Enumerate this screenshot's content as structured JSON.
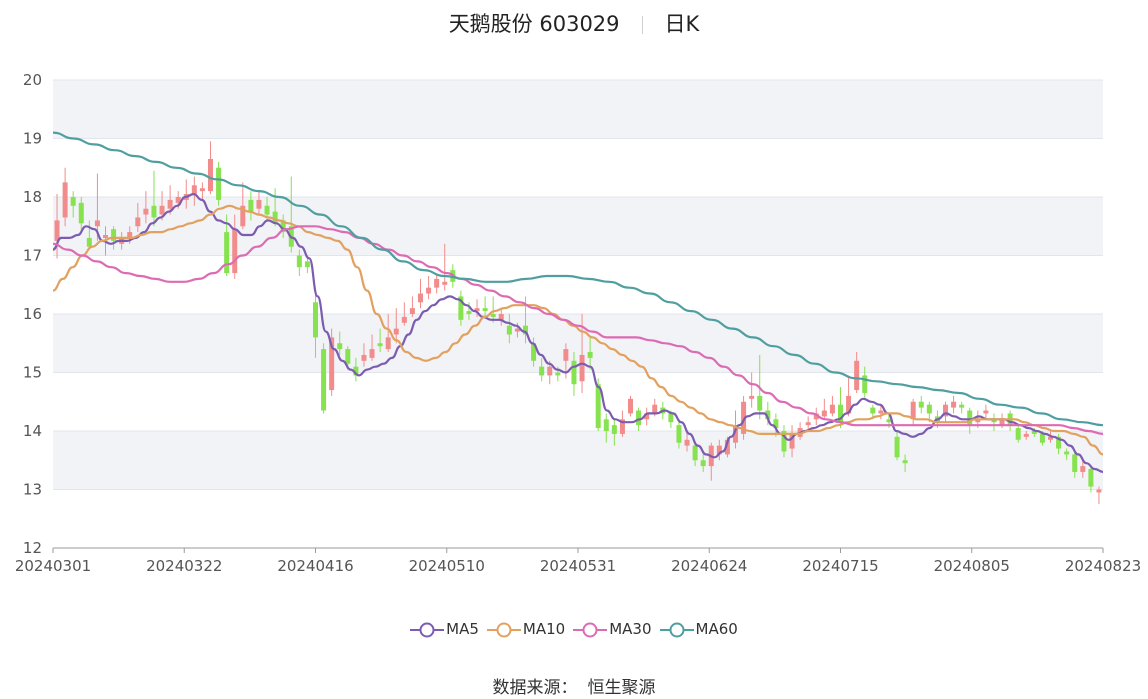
{
  "title": {
    "name": "天鹅股份 603029",
    "period": "日K"
  },
  "source": {
    "label": "数据来源：",
    "value": "恒生聚源"
  },
  "colors": {
    "up": "#f28c8c",
    "down": "#86e24f",
    "ma5": "#7b5cb0",
    "ma10": "#e2a15f",
    "ma30": "#dc6bb4",
    "ma60": "#4f9ea0",
    "band": "#f2f3f7",
    "grid": "#e3e5ec",
    "axis": "#9a9a9a"
  },
  "chart_data": {
    "type": "candlestick",
    "y_axis": {
      "min": 12,
      "max": 20,
      "ticks": [
        "12",
        "13",
        "14",
        "15",
        "16",
        "17",
        "18",
        "19",
        "20"
      ]
    },
    "x_labels": [
      "20240301",
      "20240322",
      "20240416",
      "20240510",
      "20240531",
      "20240624",
      "20240715",
      "20240805",
      "20240823"
    ],
    "legend": [
      {
        "key": "ma5",
        "label": "MA5"
      },
      {
        "key": "ma10",
        "label": "MA10"
      },
      {
        "key": "ma30",
        "label": "MA30"
      },
      {
        "key": "ma60",
        "label": "MA60"
      }
    ],
    "ohlc": [
      [
        17.25,
        17.6,
        18.05,
        16.95
      ],
      [
        17.65,
        18.25,
        18.5,
        17.5
      ],
      [
        18.0,
        17.85,
        18.1,
        17.65
      ],
      [
        17.9,
        17.55,
        18.0,
        17.4
      ],
      [
        17.3,
        17.15,
        17.6,
        17.1
      ],
      [
        17.5,
        17.6,
        18.4,
        17.25
      ],
      [
        17.3,
        17.35,
        17.5,
        17.0
      ],
      [
        17.45,
        17.25,
        17.5,
        17.1
      ],
      [
        17.2,
        17.3,
        17.4,
        17.1
      ],
      [
        17.3,
        17.4,
        17.5,
        17.2
      ],
      [
        17.5,
        17.65,
        17.9,
        17.4
      ],
      [
        17.7,
        17.8,
        18.1,
        17.55
      ],
      [
        17.85,
        17.65,
        18.45,
        17.5
      ],
      [
        17.7,
        17.85,
        18.1,
        17.6
      ],
      [
        17.8,
        17.95,
        18.2,
        17.7
      ],
      [
        17.9,
        18.0,
        18.1,
        17.8
      ],
      [
        17.95,
        18.05,
        18.3,
        17.8
      ],
      [
        18.05,
        18.2,
        18.35,
        17.85
      ],
      [
        18.1,
        18.15,
        18.25,
        17.95
      ],
      [
        18.1,
        18.65,
        18.95,
        18.05
      ],
      [
        18.5,
        17.95,
        18.6,
        17.85
      ],
      [
        17.4,
        16.7,
        17.7,
        16.65
      ],
      [
        16.7,
        17.45,
        17.7,
        16.6
      ],
      [
        17.5,
        17.85,
        18.25,
        17.45
      ],
      [
        17.95,
        17.75,
        18.1,
        17.6
      ],
      [
        17.8,
        17.95,
        18.1,
        17.7
      ],
      [
        17.85,
        17.7,
        18.0,
        17.6
      ],
      [
        17.75,
        17.55,
        18.15,
        17.5
      ],
      [
        17.6,
        17.4,
        17.7,
        17.3
      ],
      [
        17.5,
        17.15,
        18.35,
        17.05
      ],
      [
        17.0,
        16.8,
        17.1,
        16.65
      ],
      [
        16.9,
        16.8,
        17.0,
        16.7
      ],
      [
        16.2,
        15.6,
        16.4,
        15.25
      ],
      [
        15.4,
        14.35,
        15.5,
        14.3
      ],
      [
        14.7,
        15.6,
        15.75,
        14.6
      ],
      [
        15.5,
        15.4,
        15.7,
        15.3
      ],
      [
        15.4,
        15.15,
        15.45,
        15.05
      ],
      [
        15.1,
        14.95,
        15.25,
        14.85
      ],
      [
        15.2,
        15.3,
        15.5,
        15.1
      ],
      [
        15.25,
        15.4,
        15.65,
        15.2
      ],
      [
        15.5,
        15.45,
        15.75,
        15.35
      ],
      [
        15.4,
        15.6,
        16.0,
        15.35
      ],
      [
        15.65,
        15.75,
        16.1,
        15.5
      ],
      [
        15.85,
        15.95,
        16.2,
        15.8
      ],
      [
        16.0,
        16.1,
        16.3,
        15.95
      ],
      [
        16.2,
        16.35,
        16.6,
        16.1
      ],
      [
        16.35,
        16.45,
        16.65,
        16.25
      ],
      [
        16.45,
        16.6,
        16.7,
        16.35
      ],
      [
        16.5,
        16.55,
        17.2,
        16.4
      ],
      [
        16.75,
        16.55,
        16.85,
        16.45
      ],
      [
        16.3,
        15.9,
        16.4,
        15.8
      ],
      [
        16.05,
        16.0,
        16.2,
        15.9
      ],
      [
        16.05,
        16.1,
        16.25,
        15.95
      ],
      [
        16.1,
        16.05,
        16.3,
        15.95
      ],
      [
        16.0,
        15.95,
        16.3,
        15.85
      ],
      [
        15.9,
        16.0,
        16.1,
        15.8
      ],
      [
        15.8,
        15.65,
        16.0,
        15.5
      ],
      [
        15.7,
        15.75,
        15.85,
        15.6
      ],
      [
        15.8,
        15.65,
        16.3,
        15.5
      ],
      [
        15.5,
        15.2,
        15.6,
        15.1
      ],
      [
        15.1,
        14.95,
        15.25,
        14.85
      ],
      [
        14.95,
        15.1,
        15.2,
        14.8
      ],
      [
        15.0,
        14.95,
        15.1,
        14.85
      ],
      [
        15.2,
        15.4,
        15.5,
        14.9
      ],
      [
        15.2,
        14.8,
        15.35,
        14.6
      ],
      [
        14.85,
        15.3,
        16.0,
        14.65
      ],
      [
        15.35,
        15.25,
        15.6,
        15.05
      ],
      [
        14.8,
        14.05,
        14.9,
        14.0
      ],
      [
        14.2,
        14.0,
        14.3,
        13.8
      ],
      [
        14.1,
        13.95,
        14.2,
        13.75
      ],
      [
        13.95,
        14.2,
        14.35,
        13.9
      ],
      [
        14.3,
        14.55,
        14.6,
        14.25
      ],
      [
        14.35,
        14.1,
        14.4,
        14.0
      ],
      [
        14.2,
        14.3,
        14.4,
        14.1
      ],
      [
        14.3,
        14.45,
        14.55,
        14.25
      ],
      [
        14.4,
        14.3,
        14.5,
        14.2
      ],
      [
        14.3,
        14.15,
        14.35,
        14.05
      ],
      [
        14.1,
        13.8,
        14.2,
        13.7
      ],
      [
        13.75,
        13.85,
        14.0,
        13.65
      ],
      [
        13.75,
        13.5,
        13.8,
        13.4
      ],
      [
        13.5,
        13.4,
        13.6,
        13.3
      ],
      [
        13.4,
        13.75,
        13.8,
        13.15
      ],
      [
        13.6,
        13.75,
        13.85,
        13.5
      ],
      [
        13.6,
        13.85,
        13.9,
        13.55
      ],
      [
        13.8,
        14.1,
        14.35,
        13.7
      ],
      [
        13.95,
        14.5,
        14.6,
        13.85
      ],
      [
        14.55,
        14.6,
        15.0,
        14.4
      ],
      [
        14.6,
        14.35,
        15.3,
        14.2
      ],
      [
        14.35,
        14.2,
        14.5,
        14.1
      ],
      [
        14.2,
        14.05,
        14.3,
        13.9
      ],
      [
        14.0,
        13.65,
        14.1,
        13.55
      ],
      [
        13.7,
        13.95,
        14.1,
        13.55
      ],
      [
        13.9,
        14.05,
        14.15,
        13.85
      ],
      [
        14.1,
        14.15,
        14.25,
        14.0
      ],
      [
        14.2,
        14.3,
        14.4,
        14.1
      ],
      [
        14.25,
        14.35,
        14.55,
        14.2
      ],
      [
        14.3,
        14.45,
        14.6,
        14.25
      ],
      [
        14.45,
        14.15,
        14.75,
        14.05
      ],
      [
        14.3,
        14.6,
        14.95,
        14.25
      ],
      [
        14.7,
        15.2,
        15.35,
        14.65
      ],
      [
        14.95,
        14.65,
        15.1,
        14.55
      ],
      [
        14.4,
        14.3,
        14.45,
        14.2
      ],
      [
        14.3,
        14.35,
        14.45,
        14.2
      ],
      [
        14.2,
        14.15,
        14.3,
        14.05
      ],
      [
        13.9,
        13.55,
        14.0,
        13.5
      ],
      [
        13.5,
        13.45,
        13.6,
        13.3
      ],
      [
        14.2,
        14.5,
        14.55,
        14.1
      ],
      [
        14.5,
        14.4,
        14.6,
        14.3
      ],
      [
        14.45,
        14.3,
        14.5,
        14.15
      ],
      [
        14.25,
        14.15,
        14.35,
        14.05
      ],
      [
        14.25,
        14.45,
        14.5,
        14.15
      ],
      [
        14.4,
        14.5,
        14.6,
        14.3
      ],
      [
        14.45,
        14.4,
        14.5,
        14.3
      ],
      [
        14.35,
        14.1,
        14.4,
        13.95
      ],
      [
        14.15,
        14.2,
        14.35,
        14.05
      ],
      [
        14.3,
        14.35,
        14.45,
        14.2
      ],
      [
        14.2,
        14.15,
        14.3,
        14.0
      ],
      [
        14.1,
        14.2,
        14.3,
        14.05
      ],
      [
        14.3,
        14.1,
        14.35,
        14.0
      ],
      [
        14.05,
        13.85,
        14.1,
        13.8
      ],
      [
        13.9,
        13.95,
        14.0,
        13.85
      ],
      [
        14.0,
        13.95,
        14.05,
        13.9
      ],
      [
        13.95,
        13.8,
        14.0,
        13.75
      ],
      [
        13.85,
        13.9,
        14.0,
        13.8
      ],
      [
        13.9,
        13.7,
        13.95,
        13.6
      ],
      [
        13.65,
        13.6,
        13.7,
        13.5
      ],
      [
        13.6,
        13.3,
        13.65,
        13.2
      ],
      [
        13.3,
        13.4,
        13.5,
        13.2
      ],
      [
        13.35,
        13.05,
        13.4,
        12.95
      ],
      [
        12.95,
        13.0,
        13.05,
        12.75
      ]
    ],
    "ma5": [
      17.1,
      17.3,
      17.3,
      17.35,
      17.5,
      17.45,
      17.25,
      17.2,
      17.25,
      17.25,
      17.3,
      17.4,
      17.55,
      17.65,
      17.75,
      17.85,
      18.0,
      18.05,
      17.95,
      17.75,
      17.6,
      17.55,
      17.45,
      17.35,
      17.35,
      17.5,
      17.6,
      17.55,
      17.45,
      17.3,
      17.15,
      16.95,
      16.3,
      15.7,
      15.4,
      15.2,
      15.05,
      14.95,
      15.05,
      15.1,
      15.15,
      15.25,
      15.45,
      15.65,
      15.9,
      16.05,
      16.15,
      16.25,
      16.3,
      16.25,
      16.15,
      16.05,
      15.95,
      15.9,
      15.9,
      15.85,
      15.8,
      15.7,
      15.5,
      15.3,
      15.15,
      15.05,
      15.0,
      15.1,
      15.15,
      15.1,
      14.75,
      14.35,
      14.2,
      14.15,
      14.15,
      14.2,
      14.3,
      14.3,
      14.35,
      14.3,
      14.15,
      13.95,
      13.75,
      13.6,
      13.55,
      13.65,
      13.9,
      14.1,
      14.25,
      14.3,
      14.3,
      14.1,
      13.95,
      13.85,
      13.95,
      14.0,
      14.05,
      14.1,
      14.15,
      14.2,
      14.3,
      14.45,
      14.55,
      14.5,
      14.45,
      14.3,
      14.0,
      13.95,
      13.9,
      13.95,
      14.05,
      14.2,
      14.3,
      14.25,
      14.2,
      14.2,
      14.25,
      14.2,
      14.2,
      14.2,
      14.15,
      14.1,
      14.05,
      14.0,
      13.95,
      13.9,
      13.85,
      13.75,
      13.6,
      13.45,
      13.35,
      13.3
    ],
    "ma10": [
      16.4,
      16.6,
      16.8,
      17.0,
      17.15,
      17.25,
      17.3,
      17.3,
      17.3,
      17.35,
      17.4,
      17.4,
      17.45,
      17.5,
      17.55,
      17.6,
      17.7,
      17.8,
      17.85,
      17.8,
      17.75,
      17.7,
      17.65,
      17.6,
      17.55,
      17.5,
      17.4,
      17.35,
      17.3,
      17.25,
      17.1,
      16.8,
      16.4,
      16.0,
      15.75,
      15.55,
      15.35,
      15.25,
      15.2,
      15.25,
      15.35,
      15.5,
      15.65,
      15.8,
      15.95,
      16.05,
      16.1,
      16.15,
      16.15,
      16.15,
      16.1,
      16.0,
      15.9,
      15.8,
      15.7,
      15.6,
      15.5,
      15.4,
      15.3,
      15.2,
      15.1,
      14.9,
      14.75,
      14.6,
      14.5,
      14.4,
      14.3,
      14.2,
      14.15,
      14.1,
      14.05,
      14.0,
      13.95,
      13.95,
      13.95,
      13.95,
      13.95,
      14.0,
      14.0,
      14.05,
      14.1,
      14.15,
      14.2,
      14.2,
      14.25,
      14.3,
      14.3,
      14.25,
      14.2,
      14.2,
      14.15,
      14.15,
      14.15,
      14.15,
      14.2,
      14.2,
      14.2,
      14.2,
      14.2,
      14.15,
      14.1,
      14.05,
      14.0,
      14.0,
      13.95,
      13.9,
      13.75,
      13.6
    ],
    "ma30": [
      17.2,
      17.1,
      17.0,
      16.9,
      16.8,
      16.7,
      16.65,
      16.6,
      16.55,
      16.55,
      16.6,
      16.7,
      16.85,
      17.0,
      17.15,
      17.3,
      17.45,
      17.5,
      17.5,
      17.45,
      17.4,
      17.3,
      17.2,
      17.1,
      17.0,
      16.9,
      16.8,
      16.7,
      16.6,
      16.5,
      16.4,
      16.3,
      16.2,
      16.1,
      16.0,
      15.9,
      15.8,
      15.7,
      15.6,
      15.6,
      15.6,
      15.55,
      15.5,
      15.45,
      15.35,
      15.25,
      15.1,
      14.95,
      14.8,
      14.65,
      14.5,
      14.4,
      14.3,
      14.2,
      14.15,
      14.1,
      14.1,
      14.1,
      14.1,
      14.1,
      14.1,
      14.1,
      14.1,
      14.1,
      14.1,
      14.1,
      14.1,
      14.1,
      14.1,
      14.1,
      14.05,
      14.0,
      13.95
    ],
    "ma60": [
      19.1,
      19.0,
      18.9,
      18.8,
      18.7,
      18.6,
      18.5,
      18.4,
      18.3,
      18.2,
      18.1,
      18.0,
      17.85,
      17.7,
      17.5,
      17.3,
      17.1,
      16.9,
      16.75,
      16.65,
      16.6,
      16.55,
      16.55,
      16.6,
      16.65,
      16.65,
      16.6,
      16.55,
      16.45,
      16.35,
      16.2,
      16.05,
      15.9,
      15.75,
      15.6,
      15.45,
      15.3,
      15.15,
      15.0,
      14.9,
      14.85,
      14.8,
      14.75,
      14.7,
      14.65,
      14.55,
      14.45,
      14.4,
      14.3,
      14.2,
      14.15,
      14.1
    ]
  }
}
